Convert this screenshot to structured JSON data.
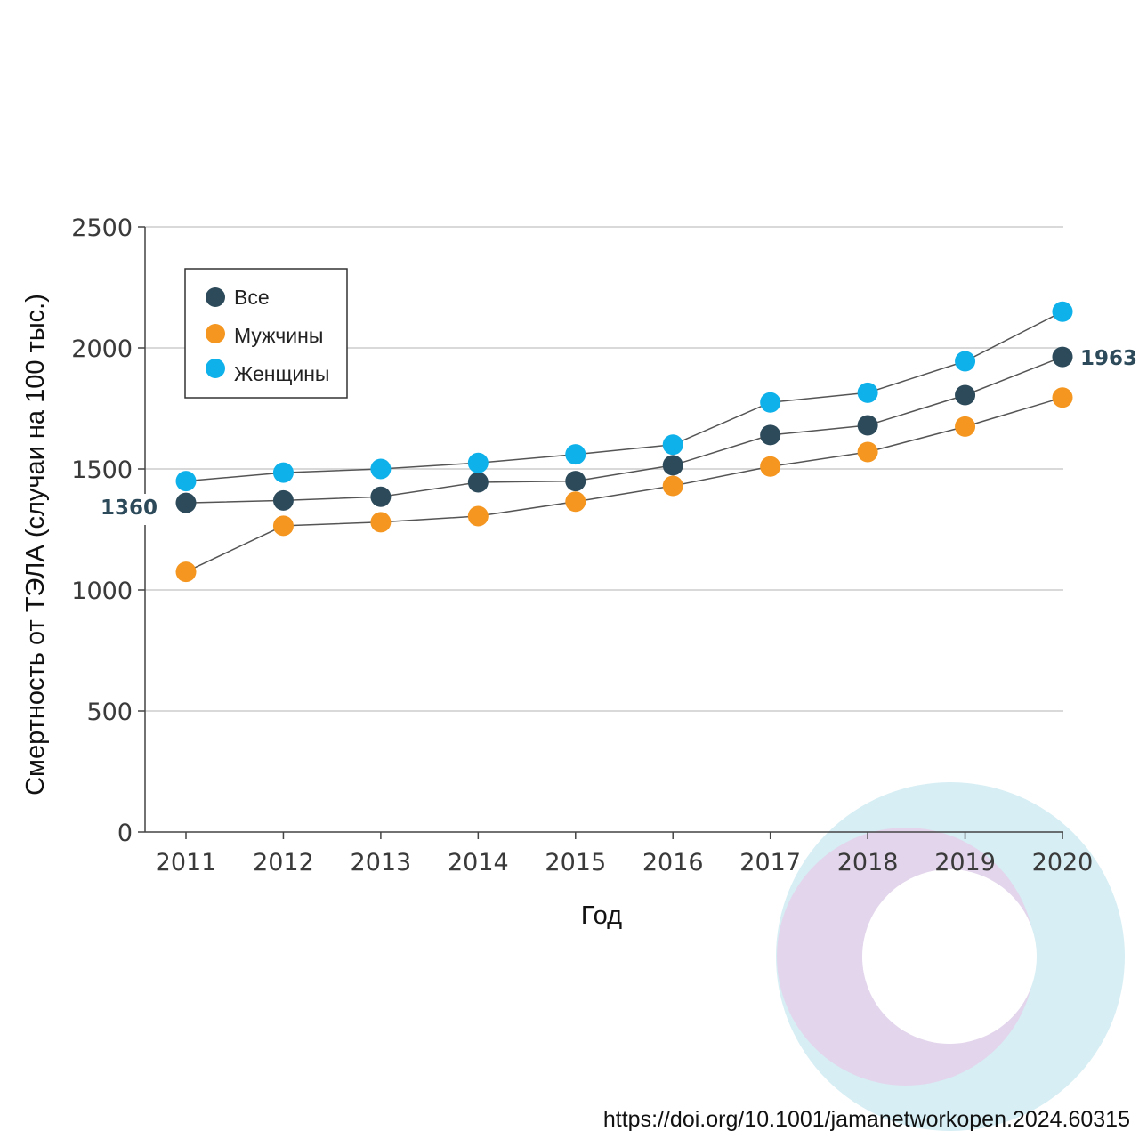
{
  "chart_data": {
    "type": "line",
    "title": "",
    "xlabel": "Год",
    "ylabel": "Смертность от ТЭЛА (случаи на 100 тыс.)",
    "categories": [
      "2011",
      "2012",
      "2013",
      "2014",
      "2015",
      "2016",
      "2017",
      "2018",
      "2019",
      "2020"
    ],
    "ylim": [
      0,
      2500
    ],
    "yticks": [
      0,
      500,
      1000,
      1500,
      2000,
      2500
    ],
    "grid": true,
    "legend_position": "top-left",
    "series": [
      {
        "name": "Все",
        "color": "#2c4a5a",
        "values": [
          1360,
          1370,
          1385,
          1445,
          1450,
          1515,
          1640,
          1680,
          1805,
          1963
        ]
      },
      {
        "name": "Мужчины",
        "color": "#f4961f",
        "values": [
          1075,
          1265,
          1280,
          1305,
          1365,
          1430,
          1510,
          1570,
          1675,
          1795
        ]
      },
      {
        "name": "Женщины",
        "color": "#0fb1ea",
        "values": [
          1450,
          1485,
          1500,
          1525,
          1560,
          1600,
          1775,
          1815,
          1945,
          2150
        ]
      }
    ],
    "annotations": {
      "start_label": "1360",
      "end_label": "1963"
    }
  },
  "source": "https://doi.org/10.1001/jamanetworkopen.2024.60315"
}
